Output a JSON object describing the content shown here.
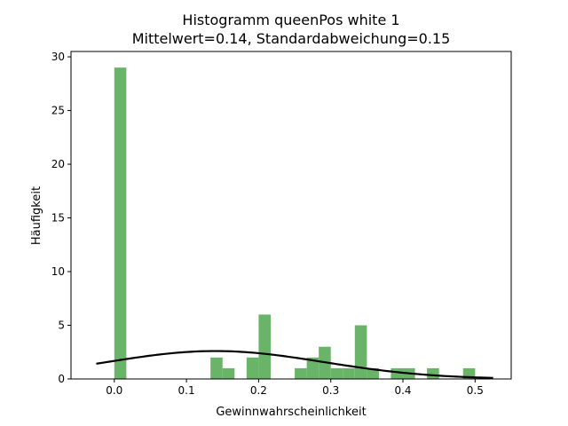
{
  "chart_data": {
    "type": "bar",
    "title": "Histogramm queenPos white 1",
    "subtitle": "Mittelwert=0.14, Standardabweichung=0.15",
    "xlabel": "Gewinnwahrscheinlichkeit",
    "ylabel": "Häufigkeit",
    "xlim": [
      -0.06,
      0.55
    ],
    "ylim": [
      0,
      30.5
    ],
    "xticks": [
      0.0,
      0.1,
      0.2,
      0.3,
      0.4,
      0.5
    ],
    "xtick_labels": [
      "0.0",
      "0.1",
      "0.2",
      "0.3",
      "0.4",
      "0.5"
    ],
    "yticks": [
      0,
      5,
      10,
      15,
      20,
      25,
      30
    ],
    "ytick_labels": [
      "0",
      "5",
      "10",
      "15",
      "20",
      "25",
      "30"
    ],
    "grid": false,
    "bin_width": 0.0167,
    "bins": [
      {
        "x0": 0.0,
        "x1": 0.0167,
        "count": 29
      },
      {
        "x0": 0.1333,
        "x1": 0.15,
        "count": 2
      },
      {
        "x0": 0.15,
        "x1": 0.1667,
        "count": 1
      },
      {
        "x0": 0.1833,
        "x1": 0.2,
        "count": 2
      },
      {
        "x0": 0.2,
        "x1": 0.2167,
        "count": 6
      },
      {
        "x0": 0.25,
        "x1": 0.2667,
        "count": 1
      },
      {
        "x0": 0.2667,
        "x1": 0.2833,
        "count": 2
      },
      {
        "x0": 0.2833,
        "x1": 0.3,
        "count": 3
      },
      {
        "x0": 0.3,
        "x1": 0.3167,
        "count": 1
      },
      {
        "x0": 0.3167,
        "x1": 0.3333,
        "count": 1
      },
      {
        "x0": 0.3333,
        "x1": 0.35,
        "count": 5
      },
      {
        "x0": 0.35,
        "x1": 0.3667,
        "count": 1
      },
      {
        "x0": 0.3833,
        "x1": 0.4,
        "count": 1
      },
      {
        "x0": 0.4,
        "x1": 0.4167,
        "count": 1
      },
      {
        "x0": 0.4333,
        "x1": 0.45,
        "count": 1
      },
      {
        "x0": 0.4833,
        "x1": 0.5,
        "count": 1
      }
    ],
    "curve": {
      "mean": 0.14,
      "std": 0.15,
      "x_range": [
        -0.025,
        0.525
      ],
      "peak_y": 2.6
    },
    "colors": {
      "bars": "#6ab46a",
      "curve": "#000000"
    }
  }
}
